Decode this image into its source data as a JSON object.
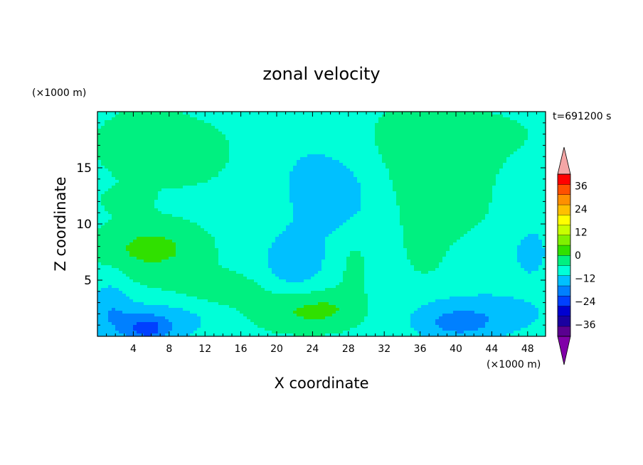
{
  "chart_data": {
    "type": "heatmap",
    "title": "zonal velocity",
    "xlabel": "X coordinate",
    "ylabel": "Z coordinate",
    "x_unit": "(×1000 m)",
    "y_unit": "(×1000 m)",
    "time_label": "t=691200 s",
    "xlim": [
      0,
      50
    ],
    "ylim": [
      0,
      20
    ],
    "x_ticks": [
      "4",
      "8",
      "12",
      "16",
      "20",
      "24",
      "28",
      "32",
      "36",
      "40",
      "44",
      "48"
    ],
    "y_ticks": [
      "5",
      "10",
      "15"
    ],
    "colorbar": {
      "min": -42,
      "max": 42,
      "step": 6,
      "extend": "both",
      "tick_labels": [
        "36",
        "24",
        "12",
        "0",
        "-12",
        "-24",
        "-36"
      ],
      "colors": [
        "#5a0090",
        "#1a00a0",
        "#0000d0",
        "#0040ff",
        "#0080ff",
        "#00c0ff",
        "#00ffd8",
        "#00f080",
        "#30e000",
        "#80f000",
        "#c8ff00",
        "#ffff00",
        "#ffc000",
        "#ff9000",
        "#ff5000",
        "#ff0000"
      ],
      "under_color": "#8000a8",
      "over_color": "#f4a6a6"
    },
    "field": {
      "x_range": [
        0,
        50
      ],
      "z_range": [
        0,
        20
      ],
      "background_value": -2,
      "features": [
        {
          "x": 6,
          "z": 7.8,
          "sx": 4.2,
          "sz": 1.6,
          "value": 10
        },
        {
          "x": 3,
          "z": 12,
          "sx": 2,
          "sz": 0.8,
          "value": 3
        },
        {
          "x": 5,
          "z": 17,
          "sx": 5,
          "sz": 3,
          "value": 3.5
        },
        {
          "x": 12,
          "z": 16,
          "sx": 4,
          "sz": 2.5,
          "value": 2
        },
        {
          "x": 14,
          "z": 4.2,
          "sx": 3,
          "sz": 1,
          "value": 5
        },
        {
          "x": 9,
          "z": 4.5,
          "sx": 5,
          "sz": 1.2,
          "value": 2.5
        },
        {
          "x": 22,
          "z": 2.2,
          "sx": 4.5,
          "sz": 1.3,
          "value": 8
        },
        {
          "x": 26,
          "z": 2.5,
          "sx": 2.5,
          "sz": 1.2,
          "value": 4
        },
        {
          "x": 28.5,
          "z": 6.5,
          "sx": 1.3,
          "sz": 2.2,
          "value": 4
        },
        {
          "x": 39,
          "z": 12.5,
          "sx": 3.5,
          "sz": 3.5,
          "value": 5
        },
        {
          "x": 36.5,
          "z": 8,
          "sx": 1.3,
          "sz": 1.8,
          "value": 4
        },
        {
          "x": 41,
          "z": 18,
          "sx": 10,
          "sz": 2.5,
          "value": 2.5
        },
        {
          "x": 33,
          "z": 15,
          "sx": 2,
          "sz": 4,
          "value": 1.5
        },
        {
          "x": 5.5,
          "z": 0.6,
          "sx": 1.8,
          "sz": 0.8,
          "value": -14
        },
        {
          "x": 6,
          "z": 1.5,
          "sx": 6,
          "sz": 1.5,
          "value": -7
        },
        {
          "x": 1.5,
          "z": 3,
          "sx": 1.5,
          "sz": 2,
          "value": -6
        },
        {
          "x": 22,
          "z": 6.5,
          "sx": 2,
          "sz": 1.5,
          "value": -7
        },
        {
          "x": 27,
          "z": 12.5,
          "sx": 3,
          "sz": 2.5,
          "value": -6
        },
        {
          "x": 22,
          "z": 9,
          "sx": 4,
          "sz": 4,
          "value": -3
        },
        {
          "x": 24,
          "z": 14.5,
          "sx": 2,
          "sz": 1.5,
          "value": -5
        },
        {
          "x": 43,
          "z": 2,
          "sx": 6,
          "sz": 1.5,
          "value": -7
        },
        {
          "x": 40,
          "z": 1,
          "sx": 3,
          "sz": 1,
          "value": -8
        },
        {
          "x": 48.5,
          "z": 7.5,
          "sx": 1.2,
          "sz": 1.5,
          "value": -7
        },
        {
          "x": 44,
          "z": 7,
          "sx": 2.5,
          "sz": 1.5,
          "value": -3
        }
      ]
    }
  }
}
